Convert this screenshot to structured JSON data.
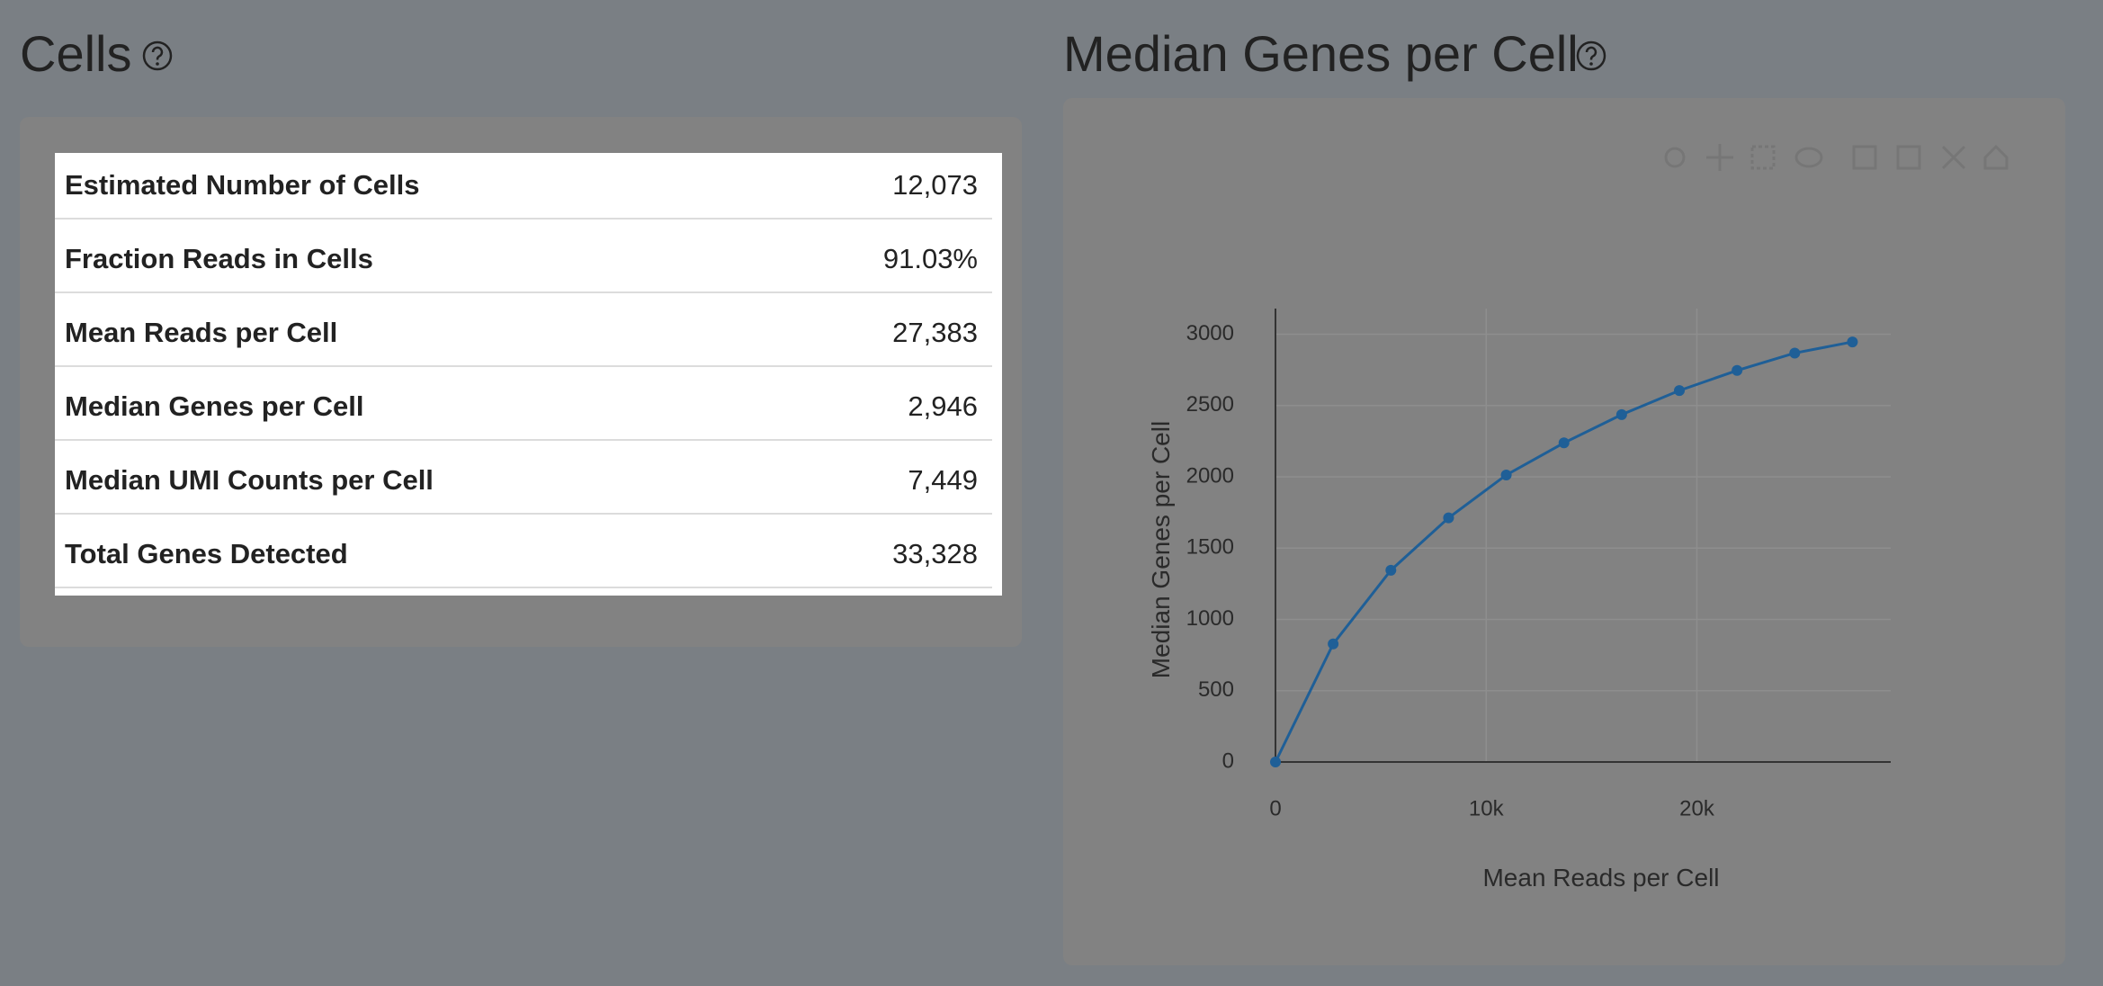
{
  "cells": {
    "title": "Cells",
    "table": {
      "rows": [
        [
          "Estimated Number of Cells",
          "12,073"
        ],
        [
          "Fraction Reads in Cells",
          "91.03%"
        ],
        [
          "Mean Reads per Cell",
          "27,383"
        ],
        [
          "Median Genes per Cell",
          "2,946"
        ],
        [
          "Median UMI Counts per Cell",
          "7,449"
        ],
        [
          "Total Genes Detected",
          "33,328"
        ]
      ]
    }
  },
  "chart_data": {
    "type": "line",
    "title": "Median Genes per Cell",
    "x_label": "Mean Reads per Cell",
    "y_label": "Median Genes per Cell",
    "x": [
      0,
      2738,
      5477,
      8215,
      10953,
      13692,
      16430,
      19168,
      21907,
      24645,
      27383
    ],
    "series": [
      {
        "name": "Median Genes per Cell",
        "color": "#1f5f97",
        "values": [
          0,
          828,
          1345,
          1712,
          2013,
          2238,
          2436,
          2605,
          2746,
          2868,
          2946
        ]
      }
    ],
    "xlim": [
      0,
      29200
    ],
    "ylim": [
      0,
      3180
    ],
    "xticks": [
      0,
      {
        "value": 10000,
        "label": "10k"
      },
      {
        "value": 20000,
        "label": "20k"
      }
    ],
    "yticks": [
      0,
      500,
      1000,
      1500,
      2000,
      2500,
      3000
    ],
    "grid": true
  }
}
